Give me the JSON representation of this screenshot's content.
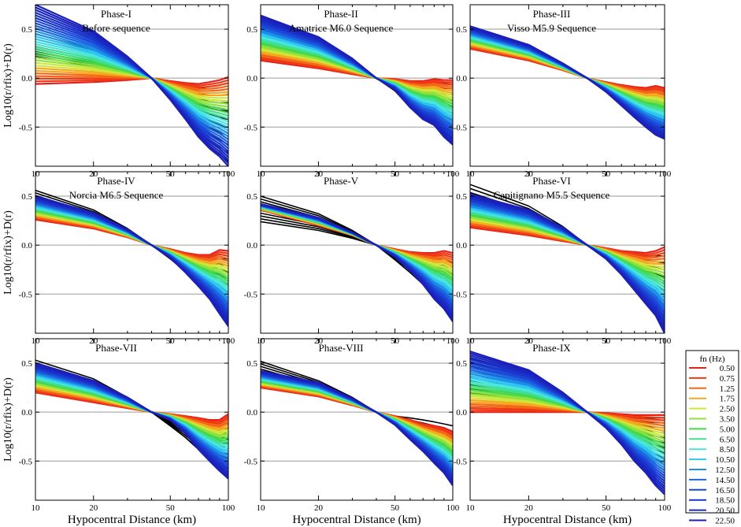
{
  "legend": {
    "title": "fn (Hz)",
    "entries": [
      {
        "label": "0.50",
        "color": "#e8201a"
      },
      {
        "label": "0.75",
        "color": "#ee3a14"
      },
      {
        "label": "1.25",
        "color": "#f2671a"
      },
      {
        "label": "1.75",
        "color": "#f6a91f"
      },
      {
        "label": "2.50",
        "color": "#cde63a"
      },
      {
        "label": "3.50",
        "color": "#8fe23d"
      },
      {
        "label": "5.00",
        "color": "#44d84a"
      },
      {
        "label": "6.50",
        "color": "#3fe08f"
      },
      {
        "label": "8.50",
        "color": "#48e4de"
      },
      {
        "label": "10.50",
        "color": "#2ec6f0"
      },
      {
        "label": "12.50",
        "color": "#1d8fe8"
      },
      {
        "label": "14.50",
        "color": "#1a66e0"
      },
      {
        "label": "16.50",
        "color": "#1b48d8"
      },
      {
        "label": "18.50",
        "color": "#1a35cc"
      },
      {
        "label": "20.50",
        "color": "#1a28c2"
      },
      {
        "label": "22.50",
        "color": "#1a20b8"
      }
    ]
  },
  "chart_data": [
    {
      "type": "line",
      "title": "Phase-I",
      "subtitle": "Before sequence",
      "xlabel": "",
      "ylabel": "Log10(r/rfix)+D(r)",
      "xscale": "log",
      "xlim": [
        10,
        100
      ],
      "ylim": [
        -0.9,
        0.75
      ],
      "xticks": [
        "10",
        "20",
        "50",
        "100"
      ],
      "yticks": [
        "0.5",
        "0.0",
        "-0.5"
      ],
      "grid_y": [
        -0.5,
        0,
        0.5
      ],
      "series_colored": {
        "x": [
          10,
          20,
          30,
          40,
          50,
          60,
          70,
          80,
          90,
          100
        ],
        "y_low": [
          -0.06,
          -0.04,
          -0.02,
          0,
          -0.03,
          -0.05,
          -0.06,
          -0.04,
          -0.02,
          0.01
        ],
        "y_high": [
          0.75,
          0.48,
          0.22,
          0,
          -0.22,
          -0.42,
          -0.6,
          -0.72,
          -0.8,
          -0.9
        ]
      },
      "series_black": {
        "x": [
          10,
          20,
          30,
          40,
          50,
          60,
          70,
          80,
          90,
          100
        ],
        "y_low": [
          0.22,
          0.12,
          0.05,
          0,
          -0.04,
          -0.08,
          -0.1,
          -0.11,
          -0.1,
          -0.08
        ],
        "y_high": [
          0.45,
          0.3,
          0.14,
          0,
          -0.22,
          -0.42,
          -0.6,
          -0.7,
          -0.78,
          -0.85
        ]
      }
    },
    {
      "type": "line",
      "title": "Phase-II",
      "subtitle": "Amatrice M6.0 Sequence",
      "xlabel": "",
      "ylabel": "",
      "xscale": "log",
      "xlim": [
        10,
        100
      ],
      "ylim": [
        -0.9,
        0.75
      ],
      "xticks": [
        "10",
        "20",
        "50",
        "100"
      ],
      "yticks": [
        "0.5",
        "0.0",
        "-0.5"
      ],
      "grid_y": [
        -0.5,
        0,
        0.5
      ],
      "series_colored": {
        "x": [
          10,
          20,
          30,
          40,
          50,
          60,
          70,
          80,
          90,
          100
        ],
        "y_low": [
          0.18,
          0.1,
          0.04,
          0,
          -0.01,
          -0.03,
          -0.03,
          -0.01,
          -0.02,
          -0.02
        ],
        "y_high": [
          0.64,
          0.42,
          0.2,
          0,
          -0.12,
          -0.3,
          -0.42,
          -0.48,
          -0.6,
          -0.68
        ]
      },
      "series_black": {
        "x": [
          10,
          20,
          30,
          40,
          50,
          60,
          70,
          80,
          90,
          100
        ],
        "y_low": [
          0.25,
          0.14,
          0.06,
          0,
          -0.02,
          -0.05,
          -0.05,
          -0.05,
          -0.05,
          -0.04
        ],
        "y_high": [
          0.42,
          0.27,
          0.13,
          0,
          -0.13,
          -0.3,
          -0.4,
          -0.48,
          -0.55,
          -0.62
        ]
      }
    },
    {
      "type": "line",
      "title": "Phase-III",
      "subtitle": "Visso M5.9 Sequence",
      "xlabel": "",
      "ylabel": "",
      "xscale": "log",
      "xlim": [
        10,
        100
      ],
      "ylim": [
        -0.9,
        0.75
      ],
      "xticks": [
        "10",
        "20",
        "50",
        "100"
      ],
      "yticks": [
        "0.5",
        "0.0",
        "-0.5"
      ],
      "grid_y": [
        -0.5,
        0,
        0.5
      ],
      "series_colored": {
        "x": [
          10,
          20,
          30,
          40,
          50,
          60,
          70,
          80,
          90,
          100
        ],
        "y_low": [
          0.3,
          0.18,
          0.08,
          0,
          -0.04,
          -0.07,
          -0.09,
          -0.1,
          -0.08,
          -0.1
        ],
        "y_high": [
          0.53,
          0.34,
          0.15,
          0,
          -0.14,
          -0.28,
          -0.4,
          -0.5,
          -0.58,
          -0.62
        ]
      },
      "series_black": {
        "x": [
          10,
          20,
          30,
          40,
          50,
          60,
          70,
          80,
          90,
          100
        ],
        "y_low": [
          0.38,
          0.22,
          0.09,
          0,
          -0.06,
          -0.1,
          -0.12,
          -0.14,
          -0.16,
          -0.17
        ],
        "y_high": [
          0.46,
          0.3,
          0.13,
          0,
          -0.13,
          -0.25,
          -0.35,
          -0.45,
          -0.52,
          -0.58
        ]
      }
    },
    {
      "type": "line",
      "title": "Phase-IV",
      "subtitle": "Norcia M6.5 Sequence",
      "xlabel": "",
      "ylabel": "Log10(r/rfix)+D(r)",
      "xscale": "log",
      "xlim": [
        10,
        100
      ],
      "ylim": [
        -0.9,
        0.75
      ],
      "xticks": [
        "10",
        "20",
        "50",
        "100"
      ],
      "yticks": [
        "0.5",
        "0.0",
        "-0.5"
      ],
      "grid_y": [
        -0.5,
        0,
        0.5
      ],
      "series_colored": {
        "x": [
          10,
          20,
          30,
          40,
          50,
          60,
          70,
          80,
          90,
          100
        ],
        "y_low": [
          0.26,
          0.17,
          0.08,
          0,
          -0.04,
          -0.08,
          -0.1,
          -0.1,
          -0.05,
          -0.06
        ],
        "y_high": [
          0.5,
          0.33,
          0.16,
          0,
          -0.13,
          -0.28,
          -0.42,
          -0.55,
          -0.7,
          -0.83
        ]
      },
      "series_black": {
        "x": [
          10,
          20,
          30,
          40,
          50,
          60,
          70,
          80,
          90,
          100
        ],
        "y_low": [
          0.32,
          0.2,
          0.09,
          0,
          -0.05,
          -0.09,
          -0.12,
          -0.14,
          -0.14,
          -0.14
        ],
        "y_high": [
          0.56,
          0.36,
          0.17,
          0,
          -0.14,
          -0.27,
          -0.38,
          -0.5,
          -0.62,
          -0.75
        ]
      }
    },
    {
      "type": "line",
      "title": "Phase-V",
      "subtitle": "",
      "xlabel": "",
      "ylabel": "",
      "xscale": "log",
      "xlim": [
        10,
        100
      ],
      "ylim": [
        -0.9,
        0.75
      ],
      "xticks": [
        "10",
        "20",
        "50",
        "100"
      ],
      "yticks": [
        "0.5",
        "0.0",
        "-0.5"
      ],
      "grid_y": [
        -0.5,
        0,
        0.5
      ],
      "series_colored": {
        "x": [
          10,
          20,
          30,
          40,
          50,
          60,
          70,
          80,
          90,
          100
        ],
        "y_low": [
          0.36,
          0.2,
          0.1,
          0,
          -0.04,
          -0.07,
          -0.08,
          -0.08,
          -0.06,
          -0.08
        ],
        "y_high": [
          0.42,
          0.28,
          0.13,
          0,
          -0.12,
          -0.26,
          -0.4,
          -0.55,
          -0.65,
          -0.78
        ]
      },
      "series_black": {
        "x": [
          10,
          20,
          30,
          40,
          50,
          60,
          70,
          80,
          90,
          100
        ],
        "y_low": [
          0.24,
          0.15,
          0.07,
          0,
          -0.05,
          -0.09,
          -0.12,
          -0.14,
          -0.16,
          -0.18
        ],
        "y_high": [
          0.5,
          0.32,
          0.15,
          0,
          -0.15,
          -0.28,
          -0.4,
          -0.5,
          -0.6,
          -0.7
        ]
      }
    },
    {
      "type": "line",
      "title": "Phase-VI",
      "subtitle": "Capitignano M5.5 Sequence",
      "xlabel": "",
      "ylabel": "",
      "xscale": "log",
      "xlim": [
        10,
        100
      ],
      "ylim": [
        -0.9,
        0.75
      ],
      "xticks": [
        "10",
        "20",
        "50",
        "100"
      ],
      "yticks": [
        "0.5",
        "0.0",
        "-0.5"
      ],
      "grid_y": [
        -0.5,
        0,
        0.5
      ],
      "series_colored": {
        "x": [
          10,
          20,
          30,
          40,
          50,
          60,
          70,
          80,
          90,
          100
        ],
        "y_low": [
          0.18,
          0.1,
          0.04,
          0,
          -0.03,
          -0.06,
          -0.07,
          -0.08,
          -0.06,
          -0.02
        ],
        "y_high": [
          0.52,
          0.36,
          0.18,
          0,
          -0.14,
          -0.3,
          -0.46,
          -0.6,
          -0.72,
          -0.9
        ]
      },
      "series_black": {
        "x": [
          10,
          20,
          30,
          40,
          50,
          60,
          70,
          80,
          90,
          100
        ],
        "y_low": [
          0.25,
          0.15,
          0.07,
          0,
          -0.04,
          -0.08,
          -0.1,
          -0.11,
          -0.11,
          -0.11
        ],
        "y_high": [
          0.62,
          0.4,
          0.19,
          0,
          -0.14,
          -0.28,
          -0.42,
          -0.55,
          -0.65,
          -0.75
        ]
      }
    },
    {
      "type": "line",
      "title": "Phase-VII",
      "subtitle": "",
      "xlabel": "Hypocentral Distance (km)",
      "ylabel": "Log10(r/rfix)+D(r)",
      "xscale": "log",
      "xlim": [
        10,
        100
      ],
      "ylim": [
        -0.9,
        0.75
      ],
      "xticks": [
        "10",
        "20",
        "50",
        "100"
      ],
      "yticks": [
        "0.5",
        "0.0",
        "-0.5"
      ],
      "grid_y": [
        -0.5,
        0,
        0.5
      ],
      "series_colored": {
        "x": [
          10,
          20,
          30,
          40,
          50,
          60,
          70,
          80,
          90,
          100
        ],
        "y_low": [
          0.2,
          0.1,
          0.04,
          0,
          -0.02,
          -0.04,
          -0.06,
          -0.08,
          -0.08,
          -0.02
        ],
        "y_high": [
          0.5,
          0.32,
          0.15,
          0,
          -0.08,
          -0.22,
          -0.38,
          -0.5,
          -0.6,
          -0.68
        ]
      },
      "series_black": {
        "x": [
          10,
          20,
          30,
          40,
          50,
          60,
          70,
          80,
          90,
          100
        ],
        "y_low": [
          0.3,
          0.18,
          0.08,
          0,
          -0.04,
          -0.08,
          -0.1,
          -0.12,
          -0.12,
          -0.12
        ],
        "y_high": [
          0.53,
          0.34,
          0.15,
          0,
          -0.14,
          -0.26,
          -0.38,
          -0.46,
          -0.52,
          -0.58
        ]
      }
    },
    {
      "type": "line",
      "title": "Phase-VIII",
      "subtitle": "",
      "xlabel": "Hypocentral Distance (km)",
      "ylabel": "",
      "xscale": "log",
      "xlim": [
        10,
        100
      ],
      "ylim": [
        -0.9,
        0.75
      ],
      "xticks": [
        "10",
        "20",
        "50",
        "100"
      ],
      "yticks": [
        "0.5",
        "0.0",
        "-0.5"
      ],
      "grid_y": [
        -0.5,
        0,
        0.5
      ],
      "series_colored": {
        "x": [
          10,
          20,
          30,
          40,
          50,
          60,
          70,
          80,
          90,
          100
        ],
        "y_low": [
          0.25,
          0.16,
          0.07,
          0,
          -0.04,
          -0.08,
          -0.12,
          -0.14,
          -0.16,
          -0.2
        ],
        "y_high": [
          0.42,
          0.3,
          0.14,
          0,
          -0.13,
          -0.28,
          -0.4,
          -0.52,
          -0.62,
          -0.75
        ]
      },
      "series_black": {
        "x": [
          10,
          20,
          30,
          40,
          50,
          60,
          70,
          80,
          90,
          100
        ],
        "y_low": [
          0.28,
          0.18,
          0.08,
          0,
          -0.04,
          -0.06,
          -0.08,
          -0.1,
          -0.12,
          -0.14
        ],
        "y_high": [
          0.52,
          0.32,
          0.15,
          0,
          -0.12,
          -0.25,
          -0.36,
          -0.45,
          -0.55,
          -0.65
        ]
      }
    },
    {
      "type": "line",
      "title": "Phase-IX",
      "subtitle": "",
      "xlabel": "Hypocentral Distance (km)",
      "ylabel": "",
      "xscale": "log",
      "xlim": [
        10,
        100
      ],
      "ylim": [
        -0.9,
        0.75
      ],
      "xticks": [
        "10",
        "20",
        "50",
        "100"
      ],
      "yticks": [
        "0.5",
        "0.0",
        "-0.5"
      ],
      "grid_y": [
        -0.5,
        0,
        0.5
      ],
      "series_colored": {
        "x": [
          10,
          20,
          30,
          40,
          50,
          60,
          70,
          80,
          90,
          100
        ],
        "y_low": [
          0,
          0,
          0,
          0,
          -0.01,
          -0.02,
          -0.03,
          -0.03,
          -0.03,
          -0.03
        ],
        "y_high": [
          0.62,
          0.43,
          0.2,
          0,
          -0.16,
          -0.33,
          -0.5,
          -0.62,
          -0.75,
          -0.84
        ]
      },
      "series_black": {
        "x": [
          10,
          20,
          30,
          40,
          50,
          60,
          70,
          80,
          90,
          100
        ],
        "y_low": [
          0.2,
          0.12,
          0.05,
          0,
          -0.03,
          -0.05,
          -0.06,
          -0.06,
          -0.06,
          -0.06
        ],
        "y_high": [
          0.55,
          0.36,
          0.17,
          0,
          -0.13,
          -0.25,
          -0.35,
          -0.42,
          -0.48,
          -0.52
        ]
      }
    }
  ]
}
